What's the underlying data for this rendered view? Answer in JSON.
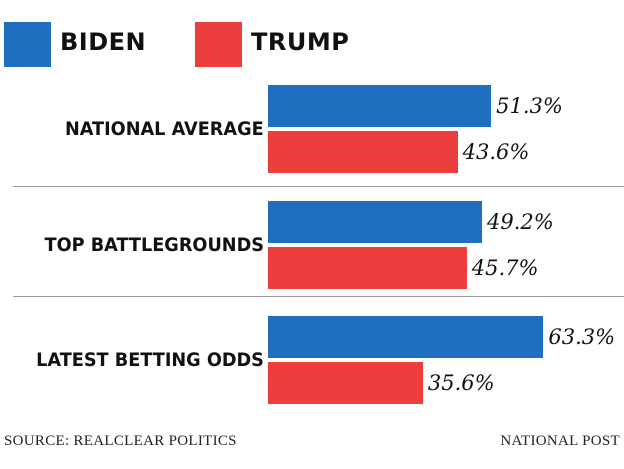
{
  "chart_data": {
    "type": "bar",
    "orientation": "horizontal",
    "categories": [
      "NATIONAL AVERAGE",
      "TOP BATTLEGROUNDS",
      "LATEST BETTING ODDS"
    ],
    "series": [
      {
        "name": "BIDEN",
        "color": "#1f6fc1",
        "values": [
          51.3,
          49.2,
          63.3
        ]
      },
      {
        "name": "TRUMP",
        "color": "#ed3e3e",
        "values": [
          43.6,
          45.7,
          35.6
        ]
      }
    ],
    "value_labels": [
      [
        "51.3%",
        "43.6%"
      ],
      [
        "49.2%",
        "45.7%"
      ],
      [
        "63.3%",
        "35.6%"
      ]
    ],
    "value_suffix": "%",
    "legend_position": "top-left"
  },
  "footer": {
    "source": "SOURCE: REALCLEAR POLITICS",
    "credit": "NATIONAL POST"
  }
}
